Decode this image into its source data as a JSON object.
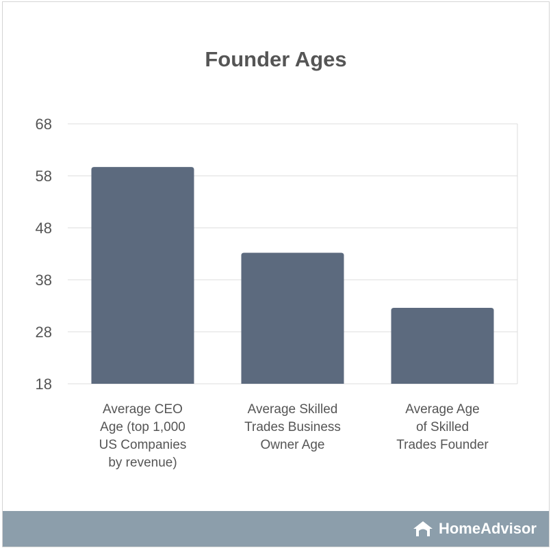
{
  "chart_data": {
    "type": "bar",
    "title": "Founder Ages",
    "categories": [
      [
        "Average CEO",
        "Age (top 1,000",
        "US Companies",
        "by revenue)"
      ],
      [
        "Average Skilled",
        "Trades Business",
        "Owner Age"
      ],
      [
        "Average Age",
        "of Skilled",
        "Trades Founder"
      ]
    ],
    "values": [
      59.7,
      43.2,
      32.6
    ],
    "ylim": [
      18,
      68
    ],
    "yticks": [
      18,
      28,
      38,
      48,
      58,
      68
    ],
    "grid": true,
    "bar_color": "#5c6a7e"
  },
  "footer": {
    "brand": "HomeAdvisor",
    "icon": "house-icon",
    "color": "#8c9eab"
  }
}
